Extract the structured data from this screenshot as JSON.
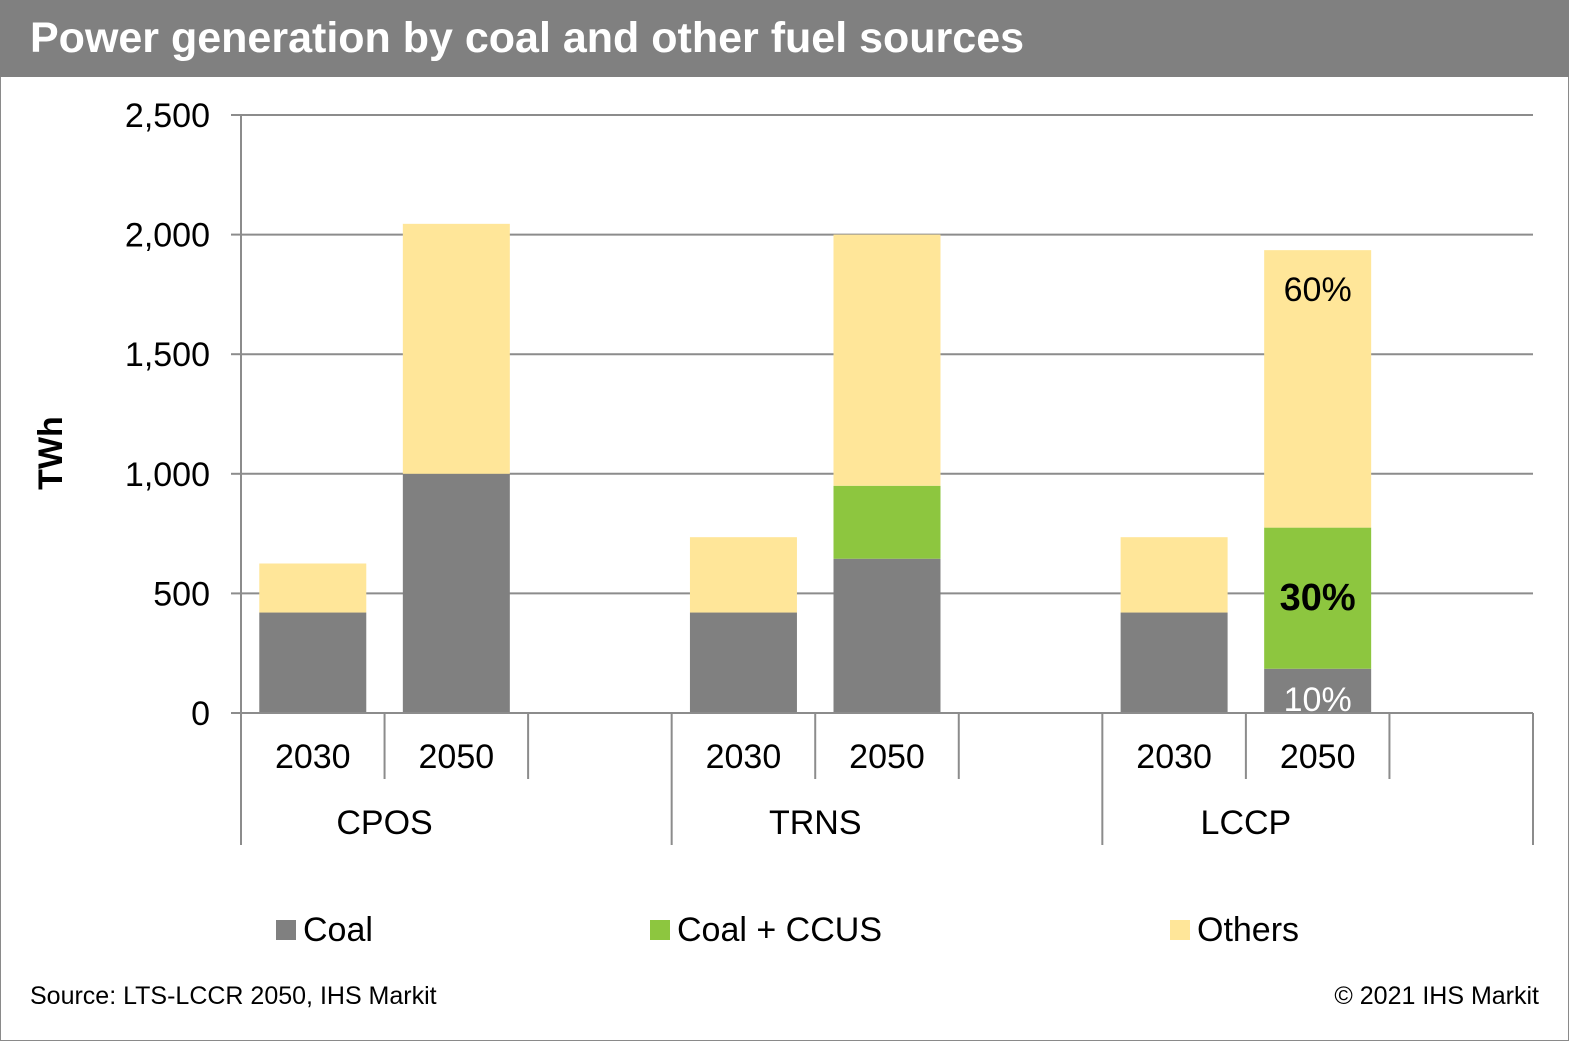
{
  "title": "Power generation by coal and other fuel sources",
  "source": "Source: LTS-LCCR 2050, IHS Markit",
  "copyright": "© 2021 IHS Markit",
  "chart_data": {
    "type": "bar",
    "stacked": true,
    "ylabel": "TWh",
    "ylim": [
      0,
      2500
    ],
    "yticks": [
      0,
      500,
      1000,
      1500,
      2000,
      2500
    ],
    "ytick_labels": [
      "0",
      "500",
      "1,000",
      "1,500",
      "2,000",
      "2,500"
    ],
    "grid": true,
    "legend_position": "bottom",
    "groups": [
      {
        "name": "CPOS",
        "categories": [
          "2030",
          "2050"
        ]
      },
      {
        "name": "TRNS",
        "categories": [
          "2030",
          "2050"
        ]
      },
      {
        "name": "LCCP",
        "categories": [
          "2030",
          "2050"
        ]
      }
    ],
    "categories": [
      "CPOS 2030",
      "CPOS 2050",
      "TRNS 2030",
      "TRNS 2050",
      "LCCP 2030",
      "LCCP 2050"
    ],
    "series": [
      {
        "name": "Coal",
        "color": "#808080",
        "values": [
          420,
          1000,
          420,
          645,
          420,
          185
        ]
      },
      {
        "name": "Coal + CCUS",
        "color": "#8dc63f",
        "values": [
          0,
          0,
          0,
          305,
          0,
          590
        ]
      },
      {
        "name": "Others",
        "color": "#ffe699",
        "values": [
          205,
          1045,
          315,
          1050,
          315,
          1160
        ]
      }
    ],
    "annotations": [
      {
        "text": "10%",
        "bar": 5,
        "series": 0,
        "color": "#ffffff",
        "bold": false
      },
      {
        "text": "30%",
        "bar": 5,
        "series": 1,
        "color": "#000000",
        "bold": true
      },
      {
        "text": "60%",
        "bar": 5,
        "series": 2,
        "color": "#000000",
        "bold": false
      }
    ]
  }
}
